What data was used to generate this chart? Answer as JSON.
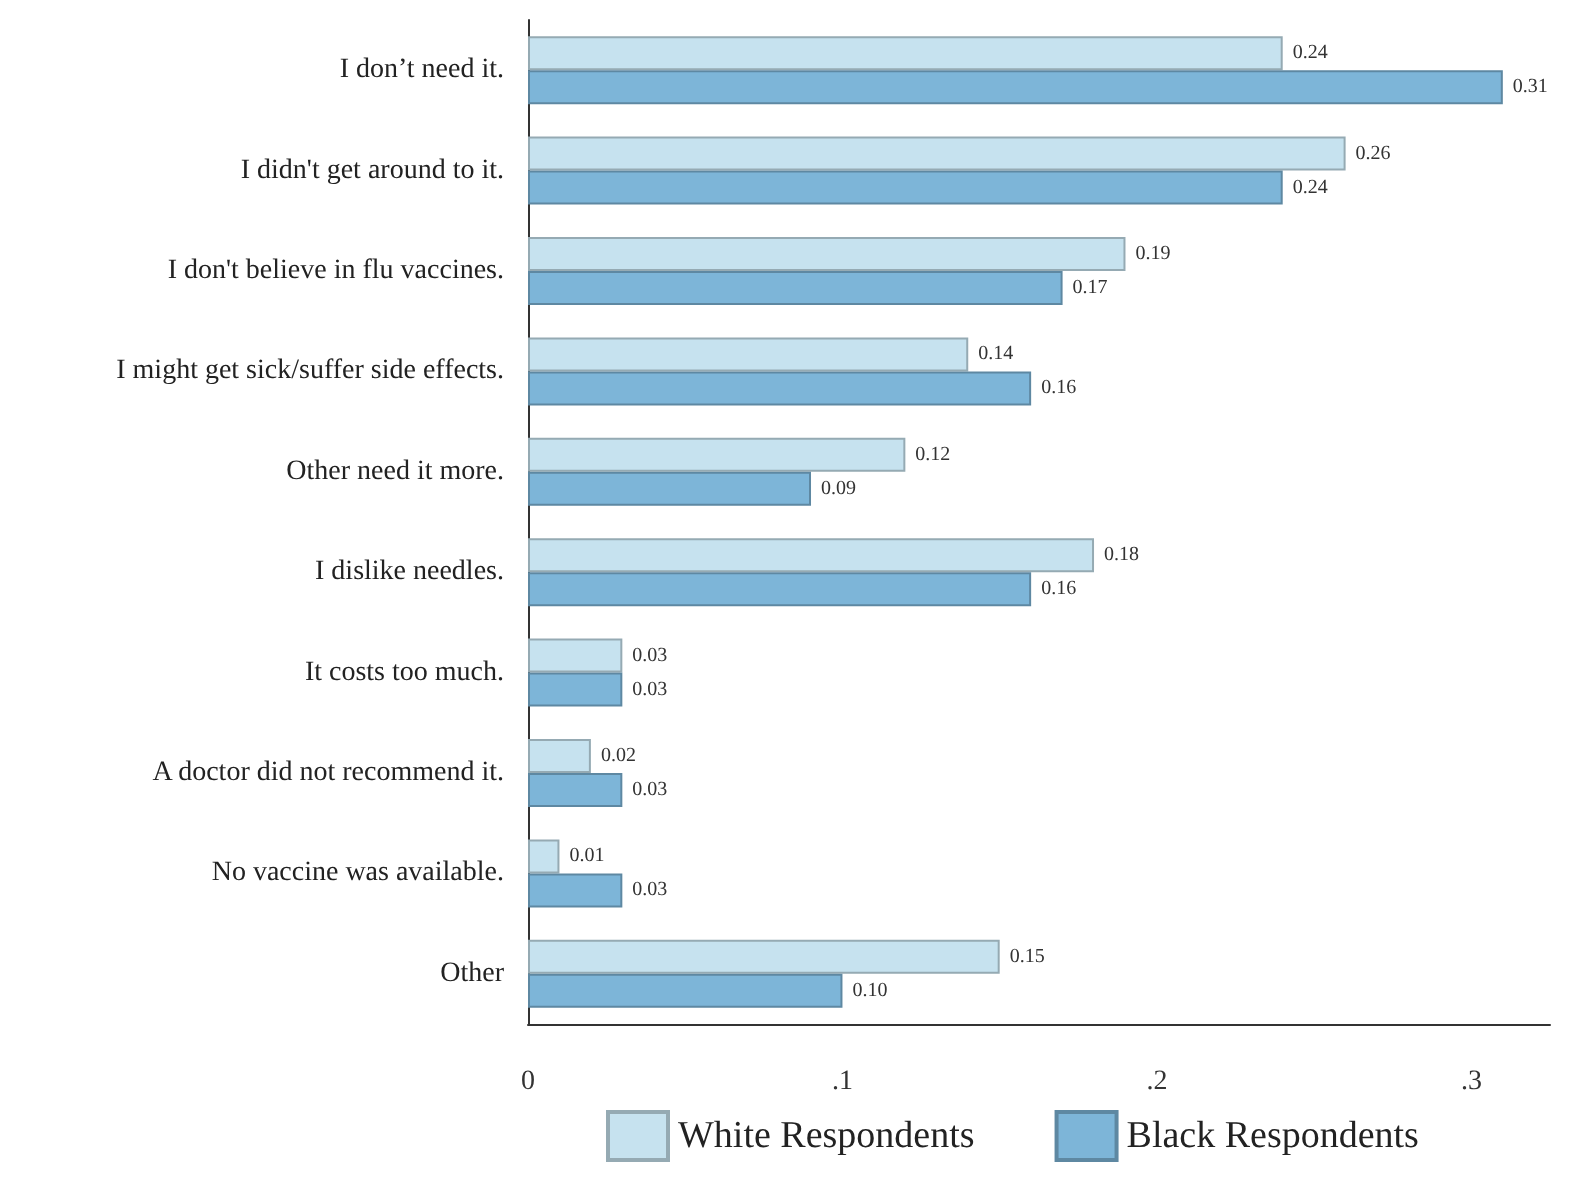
{
  "chart_data": {
    "type": "bar",
    "orientation": "horizontal",
    "categories": [
      "I don’t need it.",
      "I didn't get around to it.",
      "I don't believe in flu vaccines.",
      "I might get sick/suffer side effects.",
      "Other need it more.",
      "I dislike needles.",
      "It costs too much.",
      "A doctor did not recommend it.",
      "No vaccine was available.",
      "Other"
    ],
    "series": [
      {
        "name": "White Respondents",
        "color": "#c6e2ef",
        "values": [
          0.24,
          0.26,
          0.19,
          0.14,
          0.12,
          0.18,
          0.03,
          0.02,
          0.01,
          0.15
        ],
        "value_labels": [
          "0.24",
          "0.26",
          "0.19",
          "0.14",
          "0.12",
          "0.18",
          "0.03",
          "0.02",
          "0.01",
          "0.15"
        ]
      },
      {
        "name": "Black Respondents",
        "color": "#7db5d8",
        "values": [
          0.31,
          0.24,
          0.17,
          0.16,
          0.09,
          0.16,
          0.03,
          0.03,
          0.03,
          0.1
        ],
        "value_labels": [
          "0.31",
          "0.24",
          "0.17",
          "0.16",
          "0.09",
          "0.16",
          "0.03",
          "0.03",
          "0.03",
          "0.10"
        ]
      }
    ],
    "xlim": [
      0,
      0.325
    ],
    "xticks": [
      0,
      {
        "value": 0.1,
        "label": ".1"
      },
      {
        "value": 0.2,
        "label": ".2"
      },
      {
        "value": 0.3,
        "label": ".3"
      }
    ],
    "grid": false,
    "legend": "bottom"
  }
}
